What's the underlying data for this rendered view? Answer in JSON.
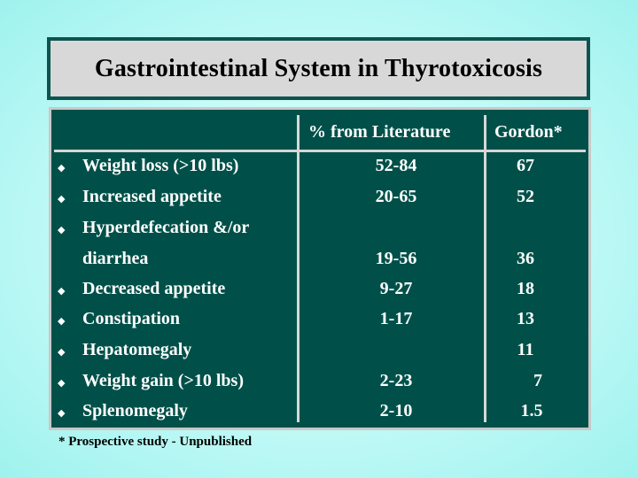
{
  "title": "Gastrointestinal System in Thyrotoxicosis",
  "columns": {
    "literature": "% from Literature",
    "gordon": "Gordon*"
  },
  "bullet_icon": "diamond-bullet",
  "rows": [
    {
      "label": "Weight loss (>10 lbs)",
      "literature": "52-84",
      "gordon": "67",
      "bullet": "◆"
    },
    {
      "label": "Increased appetite",
      "literature": "20-65",
      "gordon": "52",
      "bullet": "◆"
    },
    {
      "label": "Hyperdefecation &/or",
      "literature": "",
      "gordon": "",
      "bullet": "◆"
    },
    {
      "label": "diarrhea",
      "literature": "19-56",
      "gordon": "36",
      "bullet": ""
    },
    {
      "label": "Decreased appetite",
      "literature": "9-27",
      "gordon": "18",
      "bullet": "◆"
    },
    {
      "label": "Constipation",
      "literature": "1-17",
      "gordon": "13",
      "bullet": "◆"
    },
    {
      "label": "Hepatomegaly",
      "literature": "",
      "gordon": "11",
      "bullet": "◆"
    },
    {
      "label": "Weight gain (>10 lbs)",
      "literature": "2-23",
      "gordon": "7",
      "bullet": "◆"
    },
    {
      "label": "Splenomegaly",
      "literature": "2-10",
      "gordon": "1.5",
      "bullet": "◆"
    }
  ],
  "footnote": "* Prospective study - Unpublished",
  "colors": {
    "table_bg": "#005049",
    "title_bg": "#d8d8d8",
    "title_border": "#0d5450",
    "background": "#c8fbf8"
  }
}
